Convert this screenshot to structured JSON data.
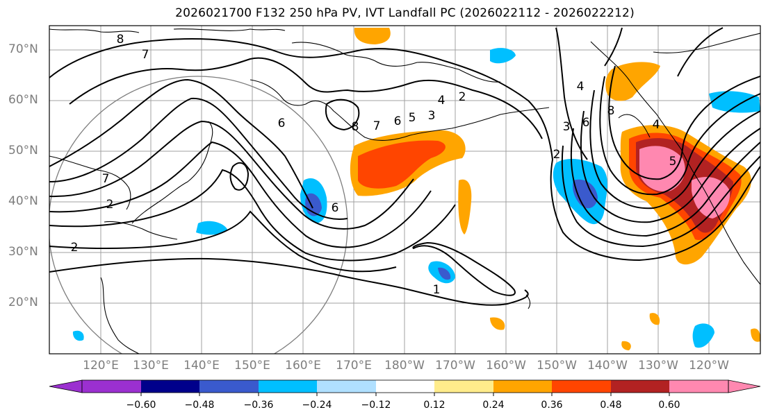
{
  "title": "2026021700 F132 250 hPa PV, IVT Landfall PC (2026022112 - 2026022212)",
  "lat_labels": [
    "70°N",
    "60°N",
    "50°N",
    "40°N",
    "30°N",
    "20°N"
  ],
  "lon_labels": [
    "120°E",
    "130°E",
    "140°E",
    "150°E",
    "160°E",
    "170°E",
    "180°W",
    "170°W",
    "160°W",
    "150°W",
    "140°W",
    "130°W",
    "120°W"
  ],
  "contour_labels": [
    "8",
    "7",
    "7",
    "2",
    "2",
    "6",
    "8",
    "7",
    "6",
    "5",
    "4",
    "3",
    "2",
    "1",
    "6",
    "6",
    "3",
    "2",
    "4",
    "8",
    "5",
    "4"
  ],
  "colorbar": {
    "tick_labels": [
      "−0.60",
      "−0.48",
      "−0.36",
      "−0.24",
      "−0.12",
      "0.12",
      "0.24",
      "0.36",
      "0.48",
      "0.60"
    ],
    "colors": [
      "#9b30d0",
      "#00008b",
      "#3a5acd",
      "#00bfff",
      "#b0e0ff",
      "#ffffff",
      "#ffec8b",
      "#ffa500",
      "#ff4500",
      "#b22222",
      "#ff88b0"
    ]
  }
}
